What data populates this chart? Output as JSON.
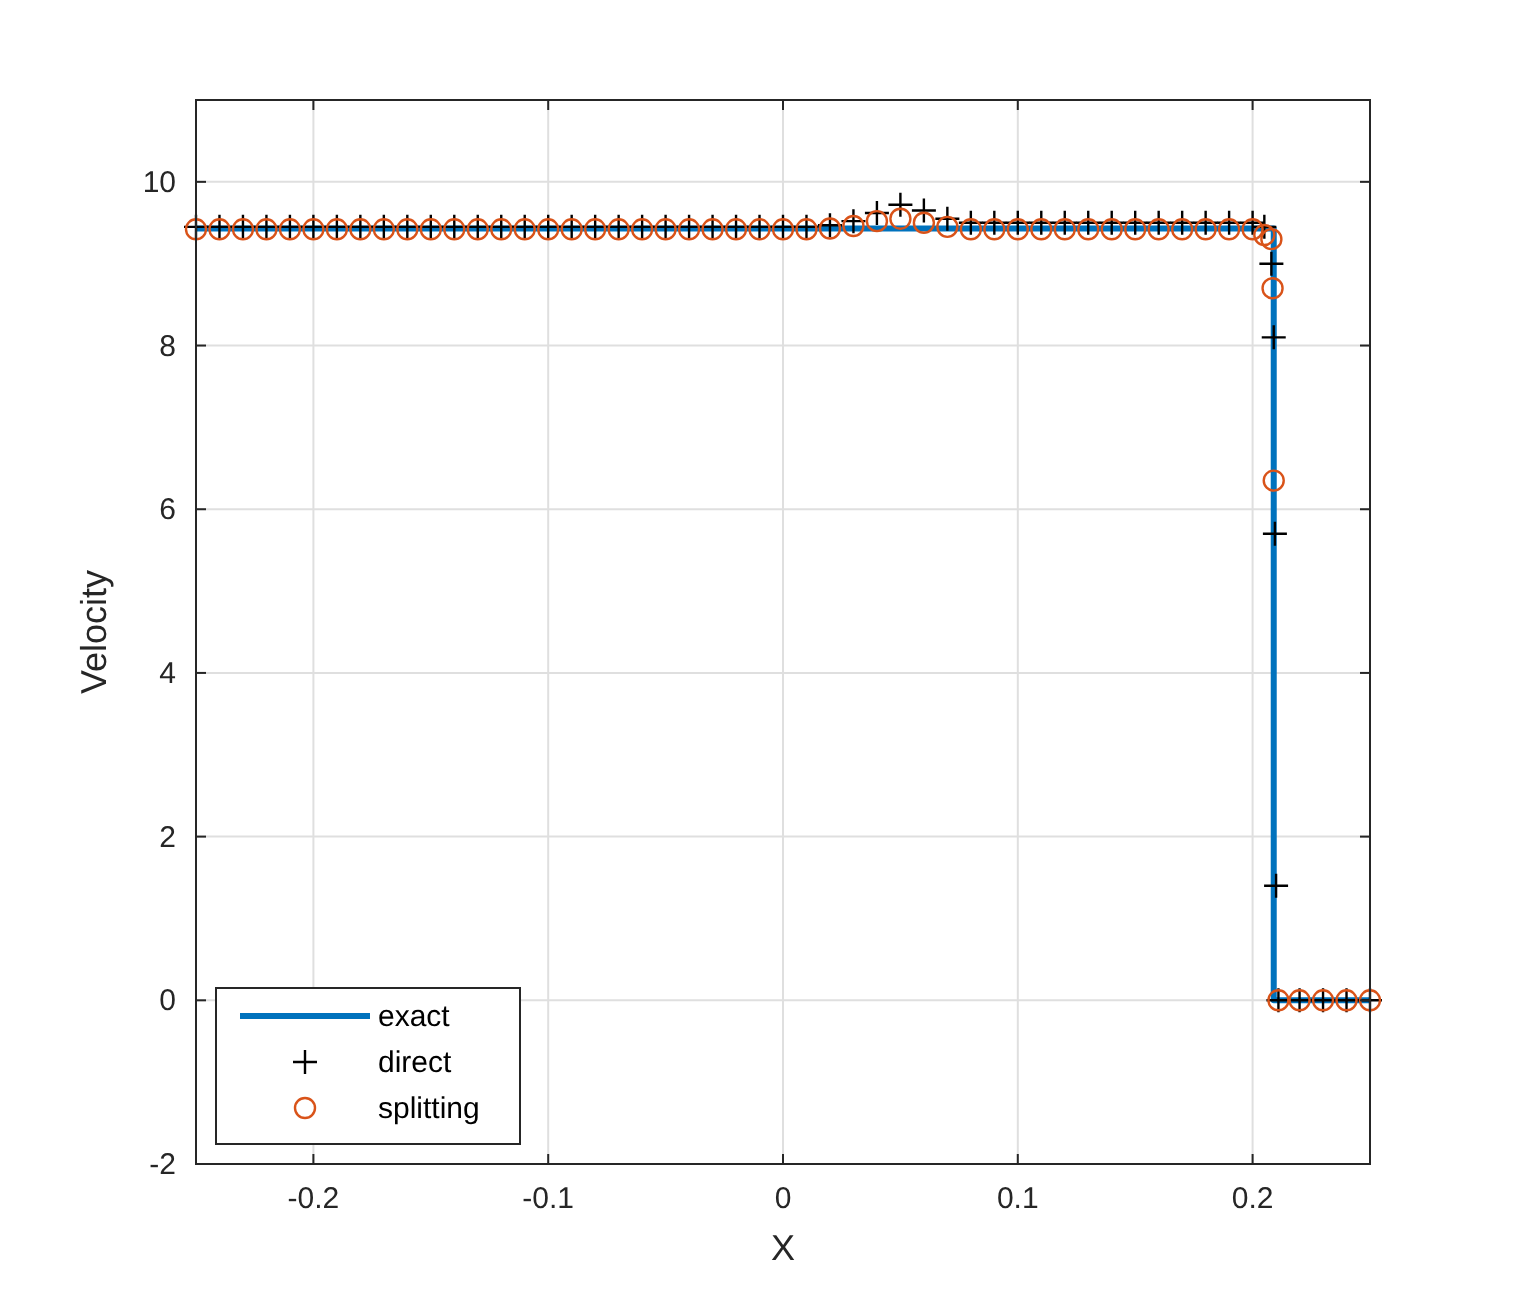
{
  "chart_data": {
    "type": "line",
    "xlabel": "X",
    "ylabel": "Velocity",
    "xlim": [
      -0.25,
      0.25
    ],
    "ylim": [
      -2,
      11
    ],
    "xticks": [
      -0.2,
      -0.1,
      0,
      0.1,
      0.2
    ],
    "yticks": [
      -2,
      0,
      2,
      4,
      6,
      8,
      10
    ],
    "grid": true,
    "legend": "bottom left",
    "series": [
      {
        "name": "exact",
        "type": "line",
        "color": "#0072bd",
        "marker": "none",
        "x": [
          -0.25,
          0.209,
          0.209,
          0.25
        ],
        "values": [
          9.43,
          9.43,
          0,
          0
        ]
      },
      {
        "name": "direct",
        "type": "scatter",
        "color": "#000000",
        "marker": "cross",
        "x": [
          -0.25,
          -0.24,
          -0.23,
          -0.22,
          -0.21,
          -0.2,
          -0.19,
          -0.18,
          -0.17,
          -0.16,
          -0.15,
          -0.14,
          -0.13,
          -0.12,
          -0.11,
          -0.1,
          -0.09,
          -0.08,
          -0.07,
          -0.06,
          -0.05,
          -0.04,
          -0.03,
          -0.02,
          -0.01,
          0,
          0.01,
          0.02,
          0.03,
          0.04,
          0.05,
          0.06,
          0.07,
          0.08,
          0.09,
          0.1,
          0.11,
          0.12,
          0.13,
          0.14,
          0.15,
          0.16,
          0.17,
          0.18,
          0.19,
          0.2,
          0.205,
          0.208,
          0.209,
          0.2095,
          0.21,
          0.211,
          0.22,
          0.23,
          0.24,
          0.25
        ],
        "values": [
          9.45,
          9.45,
          9.45,
          9.45,
          9.45,
          9.45,
          9.45,
          9.45,
          9.45,
          9.45,
          9.45,
          9.45,
          9.45,
          9.45,
          9.45,
          9.45,
          9.45,
          9.45,
          9.45,
          9.45,
          9.45,
          9.45,
          9.45,
          9.45,
          9.45,
          9.45,
          9.45,
          9.47,
          9.52,
          9.62,
          9.72,
          9.65,
          9.55,
          9.5,
          9.5,
          9.5,
          9.5,
          9.5,
          9.5,
          9.5,
          9.5,
          9.5,
          9.5,
          9.5,
          9.5,
          9.5,
          9.45,
          9.0,
          8.1,
          5.7,
          1.4,
          0,
          0,
          0,
          0,
          0
        ]
      },
      {
        "name": "splitting",
        "type": "scatter",
        "color": "#d95319",
        "marker": "circle",
        "x": [
          -0.25,
          -0.24,
          -0.23,
          -0.22,
          -0.21,
          -0.2,
          -0.19,
          -0.18,
          -0.17,
          -0.16,
          -0.15,
          -0.14,
          -0.13,
          -0.12,
          -0.11,
          -0.1,
          -0.09,
          -0.08,
          -0.07,
          -0.06,
          -0.05,
          -0.04,
          -0.03,
          -0.02,
          -0.01,
          0,
          0.01,
          0.02,
          0.03,
          0.04,
          0.05,
          0.06,
          0.07,
          0.08,
          0.09,
          0.1,
          0.11,
          0.12,
          0.13,
          0.14,
          0.15,
          0.16,
          0.17,
          0.18,
          0.19,
          0.2,
          0.205,
          0.208,
          0.2085,
          0.209,
          0.211,
          0.22,
          0.23,
          0.24,
          0.25
        ],
        "values": [
          9.42,
          9.42,
          9.42,
          9.42,
          9.42,
          9.42,
          9.42,
          9.42,
          9.42,
          9.42,
          9.42,
          9.42,
          9.42,
          9.42,
          9.42,
          9.42,
          9.42,
          9.42,
          9.42,
          9.42,
          9.42,
          9.42,
          9.42,
          9.42,
          9.42,
          9.42,
          9.42,
          9.43,
          9.46,
          9.52,
          9.55,
          9.5,
          9.45,
          9.42,
          9.42,
          9.42,
          9.42,
          9.42,
          9.42,
          9.42,
          9.42,
          9.42,
          9.42,
          9.42,
          9.42,
          9.42,
          9.35,
          9.3,
          8.7,
          6.35,
          0,
          0,
          0,
          0,
          0
        ]
      }
    ]
  }
}
